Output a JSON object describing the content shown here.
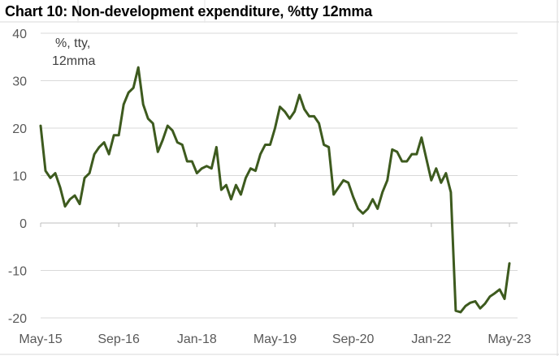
{
  "chart_data": {
    "type": "line",
    "title": "Chart 10: Non-development expenditure, %tty 12mma",
    "unit_note": [
      "%, tty,",
      "12mma"
    ],
    "ylim": [
      -20,
      40
    ],
    "y_ticks": [
      "40",
      "30",
      "20",
      "10",
      "0",
      "-10",
      "-20"
    ],
    "x_ticks": [
      "May-15",
      "Sep-16",
      "Jan-18",
      "May-19",
      "Sep-20",
      "Jan-22",
      "May-23"
    ],
    "grid": "horizontal",
    "legend": "none",
    "line_color": "#3d5a1e",
    "series": [
      {
        "values": [
          20.5,
          11.0,
          9.5,
          10.5,
          7.5,
          3.5,
          5.0,
          5.8,
          4.0,
          9.5,
          10.5,
          14.5,
          16.0,
          17.0,
          14.5,
          18.5,
          18.5,
          25.0,
          27.5,
          28.5,
          32.8,
          25.0,
          22.0,
          21.0,
          15.0,
          17.5,
          20.5,
          19.5,
          17.0,
          16.5,
          13.0,
          13.0,
          10.5,
          11.5,
          12.0,
          11.5,
          16.0,
          7.0,
          8.0,
          5.0,
          8.0,
          6.0,
          9.5,
          11.5,
          11.0,
          14.5,
          16.5,
          16.5,
          20.0,
          24.5,
          23.5,
          22.0,
          23.5,
          27.0,
          24.0,
          22.5,
          22.5,
          21.0,
          16.5,
          16.0,
          6.0,
          7.5,
          9.0,
          8.5,
          5.5,
          3.0,
          2.0,
          3.0,
          5.0,
          3.0,
          6.5,
          9.0,
          15.5,
          15.0,
          13.0,
          13.0,
          14.5,
          14.5,
          18.0,
          13.5,
          9.0,
          11.5,
          8.5,
          10.5,
          6.5,
          -18.5,
          -18.8,
          -17.5,
          -16.8,
          -16.5,
          -18.0,
          -17.0,
          -15.5,
          -14.8,
          -14.0,
          -16.0,
          -8.5
        ]
      }
    ]
  }
}
